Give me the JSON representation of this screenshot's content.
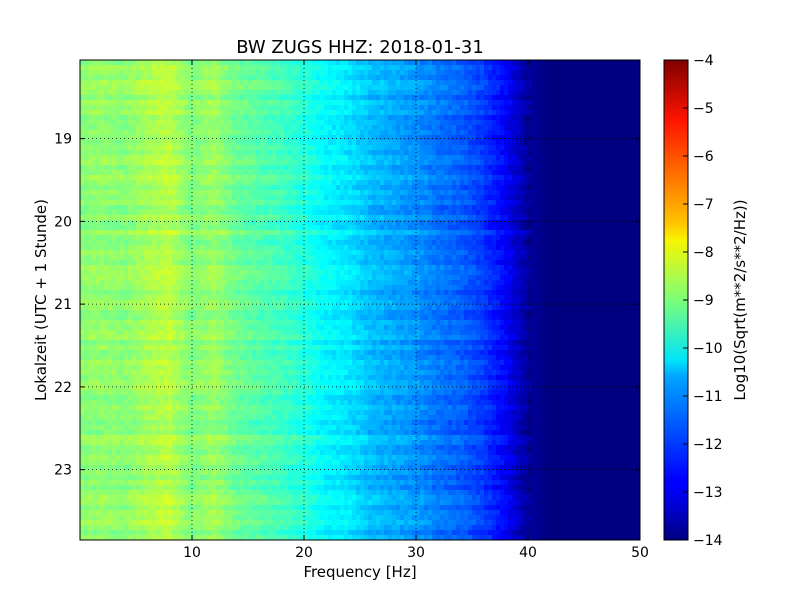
{
  "chart_data": {
    "type": "heatmap",
    "title": "BW ZUGS HHZ: 2018-01-31",
    "xlabel": "Frequency [Hz]",
    "ylabel": "Lokalzeit (UTC + 1 Stunde)",
    "xlim": [
      0,
      50
    ],
    "ylim": [
      18.05,
      23.85
    ],
    "y_inverted": true,
    "x_ticks": [
      10,
      20,
      30,
      40,
      50
    ],
    "y_ticks": [
      19,
      20,
      21,
      22,
      23
    ],
    "grid": true,
    "colormap": "jet",
    "colorbar": {
      "label": "Log10(Sqrt(m**2/s**2/Hz))",
      "range": [
        -14,
        -4
      ],
      "ticks": [
        -4,
        -5,
        -6,
        -7,
        -8,
        -9,
        -10,
        -11,
        -12,
        -13,
        -14
      ]
    },
    "frequency_hz": [
      0,
      2,
      4,
      6,
      8,
      10,
      12,
      14,
      16,
      18,
      20,
      22,
      24,
      26,
      28,
      30,
      32,
      34,
      36,
      38,
      40,
      42,
      44,
      46,
      48,
      50
    ],
    "mean_log_amplitude": [
      -8.9,
      -8.8,
      -8.9,
      -8.6,
      -8.4,
      -9.0,
      -8.7,
      -9.2,
      -9.4,
      -9.6,
      -9.9,
      -10.3,
      -10.5,
      -10.9,
      -11.1,
      -11.3,
      -11.6,
      -11.8,
      -12.2,
      -12.8,
      -13.7,
      -14.0,
      -14.0,
      -14.0,
      -14.0,
      -14.0
    ]
  }
}
